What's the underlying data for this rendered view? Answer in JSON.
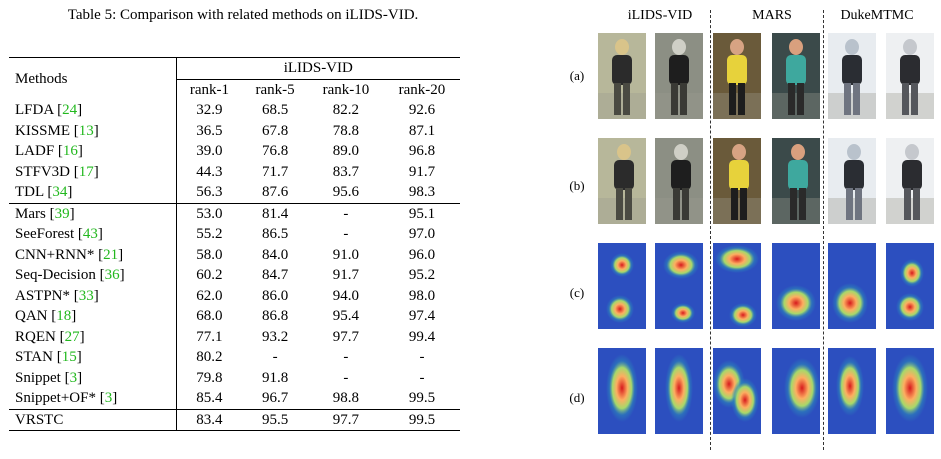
{
  "table": {
    "caption": "Table 5: Comparison with related methods on iLIDS-VID.",
    "methods_header": "Methods",
    "dataset_header": "iLIDS-VID",
    "rank_headers": [
      "rank-1",
      "rank-5",
      "rank-10",
      "rank-20"
    ],
    "rows": [
      {
        "method": "LFDA",
        "ref": "24",
        "star": "",
        "values": [
          "32.9",
          "68.5",
          "82.2",
          "92.6"
        ],
        "bold": [
          false,
          false,
          false,
          false
        ]
      },
      {
        "method": "KISSME",
        "ref": "13",
        "star": "",
        "values": [
          "36.5",
          "67.8",
          "78.8",
          "87.1"
        ],
        "bold": [
          false,
          false,
          false,
          false
        ]
      },
      {
        "method": "LADF",
        "ref": "16",
        "star": "",
        "values": [
          "39.0",
          "76.8",
          "89.0",
          "96.8"
        ],
        "bold": [
          false,
          false,
          false,
          false
        ]
      },
      {
        "method": "STFV3D",
        "ref": "17",
        "star": "",
        "values": [
          "44.3",
          "71.7",
          "83.7",
          "91.7"
        ],
        "bold": [
          false,
          false,
          false,
          false
        ]
      },
      {
        "method": "TDL",
        "ref": "34",
        "star": "",
        "values": [
          "56.3",
          "87.6",
          "95.6",
          "98.3"
        ],
        "bold": [
          false,
          false,
          false,
          false
        ]
      },
      {
        "method": "Mars",
        "ref": "39",
        "star": "",
        "values": [
          "53.0",
          "81.4",
          "-",
          "95.1"
        ],
        "bold": [
          false,
          false,
          false,
          false
        ]
      },
      {
        "method": "SeeForest",
        "ref": "43",
        "star": "",
        "values": [
          "55.2",
          "86.5",
          "-",
          "97.0"
        ],
        "bold": [
          false,
          false,
          false,
          false
        ]
      },
      {
        "method": "CNN+RNN",
        "ref": "21",
        "star": "*",
        "values": [
          "58.0",
          "84.0",
          "91.0",
          "96.0"
        ],
        "bold": [
          false,
          false,
          false,
          false
        ]
      },
      {
        "method": "Seq-Decision",
        "ref": "36",
        "star": "",
        "values": [
          "60.2",
          "84.7",
          "91.7",
          "95.2"
        ],
        "bold": [
          false,
          false,
          false,
          false
        ]
      },
      {
        "method": "ASTPN",
        "ref": "33",
        "star": "*",
        "values": [
          "62.0",
          "86.0",
          "94.0",
          "98.0"
        ],
        "bold": [
          false,
          false,
          false,
          false
        ]
      },
      {
        "method": "QAN",
        "ref": "18",
        "star": "",
        "values": [
          "68.0",
          "86.8",
          "95.4",
          "97.4"
        ],
        "bold": [
          false,
          false,
          false,
          false
        ]
      },
      {
        "method": "RQEN",
        "ref": "27",
        "star": "",
        "values": [
          "77.1",
          "93.2",
          "97.7",
          "99.4"
        ],
        "bold": [
          false,
          false,
          false,
          false
        ]
      },
      {
        "method": "STAN",
        "ref": "15",
        "star": "",
        "values": [
          "80.2",
          "-",
          "-",
          "-"
        ],
        "bold": [
          false,
          false,
          false,
          false
        ]
      },
      {
        "method": "Snippet",
        "ref": "3",
        "star": "",
        "values": [
          "79.8",
          "91.8",
          "-",
          "-"
        ],
        "bold": [
          false,
          false,
          false,
          false
        ]
      },
      {
        "method": "Snippet+OF",
        "ref": "3",
        "star": "*",
        "values": [
          "85.4",
          "96.7",
          "98.8",
          "99.5"
        ],
        "bold": [
          true,
          true,
          true,
          true
        ]
      },
      {
        "method": "VRSTC",
        "ref": "",
        "star": "",
        "values": [
          "83.4",
          "95.5",
          "97.7",
          "99.5"
        ],
        "bold": [
          false,
          false,
          false,
          true
        ]
      }
    ],
    "group_starts": [
      5,
      15
    ]
  },
  "figure": {
    "column_titles": [
      "iLIDS-VID",
      "MARS",
      "DukeMTMC"
    ],
    "row_labels": [
      "(a)",
      "(b)",
      "(c)",
      "(d)"
    ],
    "rows": [
      {
        "kind": "photo",
        "cells": [
          "ilids-person-dark-coat",
          "ilids-person-dark-coat-2",
          "mars-person-yellow-shirt",
          "mars-person-teal-shirt",
          "duke-person-dark-jacket",
          "duke-person-dark-coat"
        ]
      },
      {
        "kind": "photo",
        "cells": [
          "ilids-person-dark-coat",
          "ilids-person-dark-coat-2",
          "mars-person-yellow-shirt",
          "mars-person-teal-shirt",
          "duke-person-dark-jacket",
          "duke-person-dark-coat"
        ]
      },
      {
        "kind": "heatmap",
        "cells": [
          "attention-map",
          "attention-map",
          "attention-map",
          "attention-map",
          "attention-map",
          "attention-map"
        ]
      },
      {
        "kind": "heatmap",
        "cells": [
          "attention-map",
          "attention-map",
          "attention-map",
          "attention-map",
          "attention-map",
          "attention-map"
        ]
      }
    ]
  }
}
